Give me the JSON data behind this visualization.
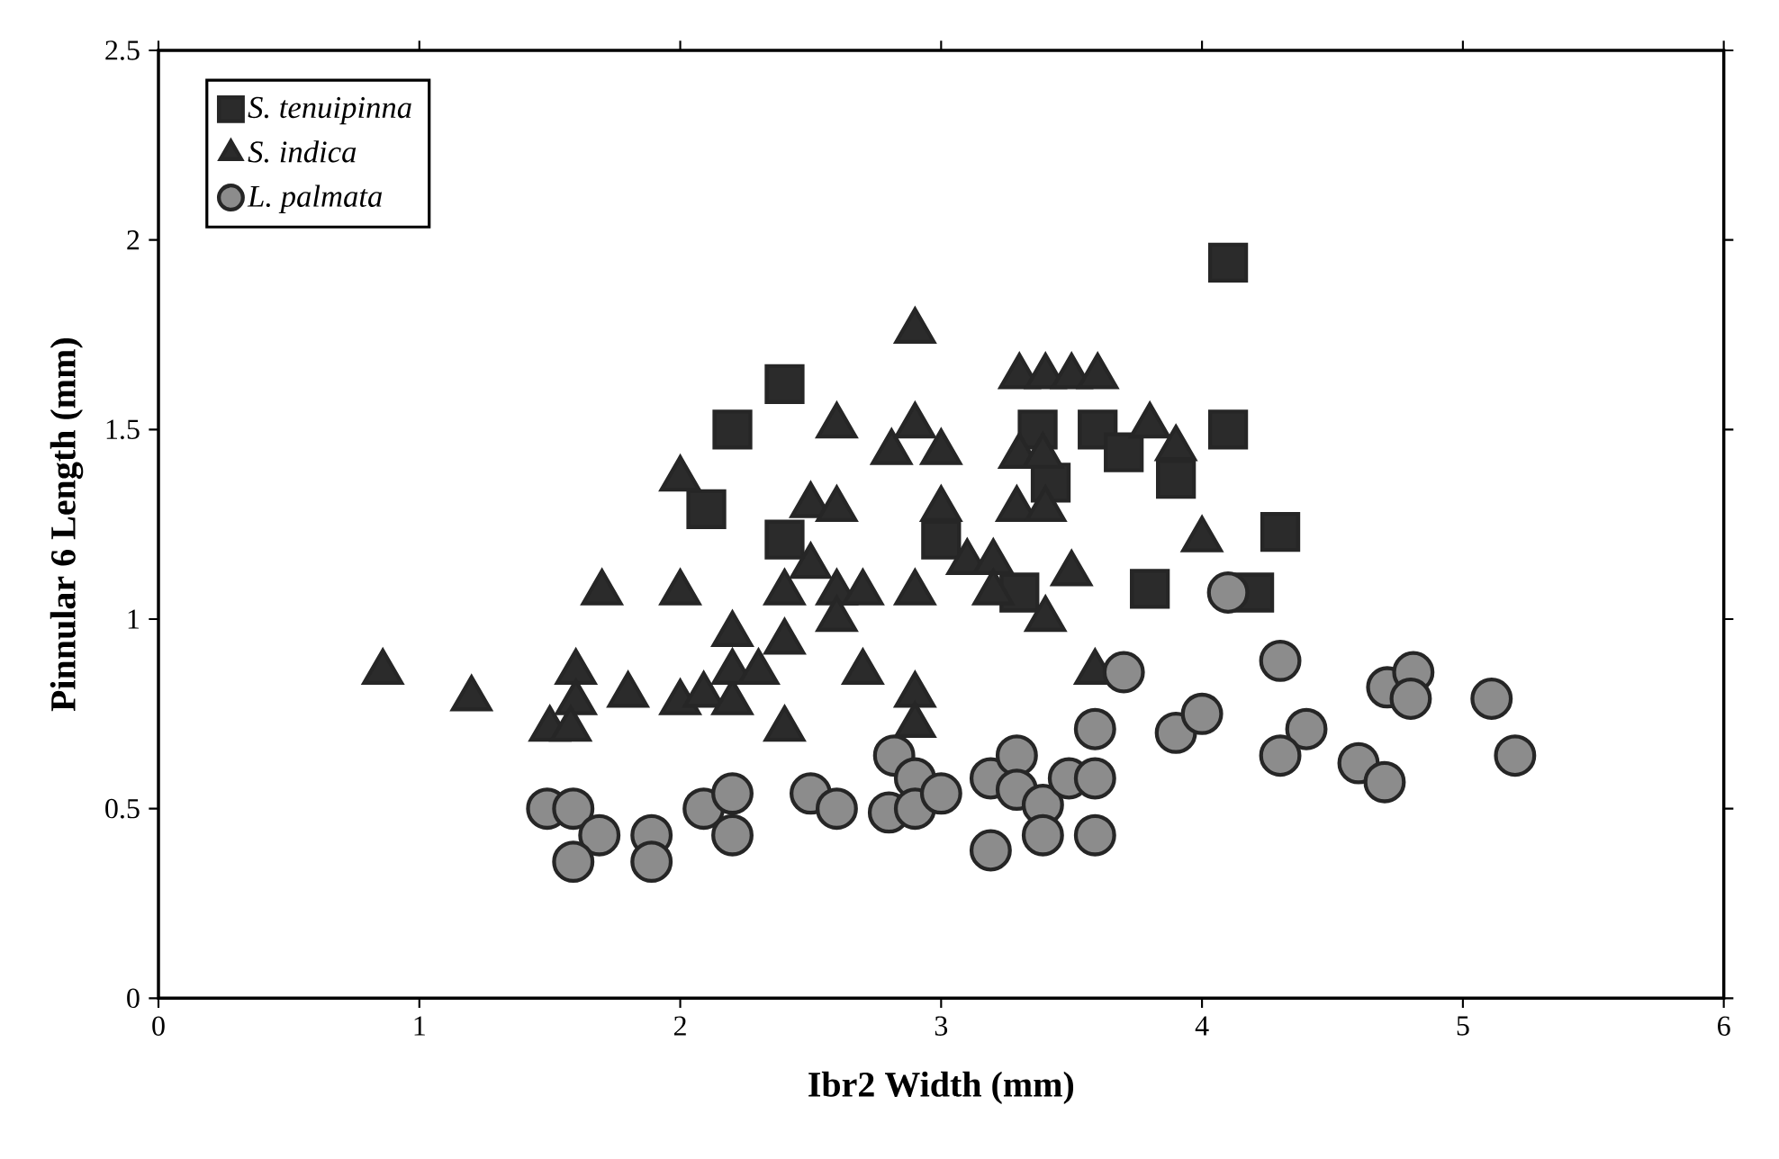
{
  "chart_data": {
    "type": "scatter",
    "xlabel": "Ibr2 Width (mm)",
    "ylabel": "Pinnular 6 Length (mm)",
    "xlim": [
      0,
      6
    ],
    "xticks": [
      0,
      1,
      2,
      3,
      4,
      5,
      6
    ],
    "ylim": [
      0,
      2.5
    ],
    "yticks": [
      0,
      0.5,
      1,
      1.5,
      2,
      2.5
    ],
    "grid": false,
    "legend": "top left",
    "series": [
      {
        "name": "S. tenuipinna",
        "color": "#2b2b2b",
        "marker": "square",
        "x": [
          2.1,
          2.2,
          2.4,
          2.4,
          3.0,
          3.3,
          3.37,
          3.42,
          3.6,
          3.7,
          3.8,
          3.9,
          4.1,
          4.1,
          4.2,
          4.3
        ],
        "values": [
          1.29,
          1.5,
          1.62,
          1.21,
          1.21,
          1.07,
          1.5,
          1.36,
          1.5,
          1.44,
          1.08,
          1.37,
          1.94,
          1.5,
          1.07,
          1.23
        ]
      },
      {
        "name": "S. indica",
        "color": "#2b2b2b",
        "marker": "triangle",
        "x": [
          0.86,
          1.2,
          1.7,
          2.0,
          2.0,
          1.6,
          1.6,
          1.5,
          1.58,
          1.8,
          2.0,
          2.09,
          2.2,
          2.2,
          2.2,
          2.3,
          2.4,
          2.4,
          2.4,
          2.5,
          2.5,
          2.9,
          2.6,
          2.81,
          2.9,
          3.0,
          3.3,
          3.4,
          3.5,
          3.6,
          3.3,
          3.39,
          3.9,
          3.8,
          2.6,
          3.0,
          3.29,
          3.4,
          4.0,
          3.1,
          3.2,
          2.6,
          2.7,
          2.9,
          3.2,
          3.5,
          3.4,
          2.6,
          2.7,
          2.9,
          2.9,
          3.59
        ],
        "values": [
          0.86,
          0.79,
          1.07,
          1.07,
          1.37,
          0.86,
          0.78,
          0.71,
          0.71,
          0.8,
          0.78,
          0.8,
          0.78,
          0.96,
          0.86,
          0.86,
          0.94,
          1.07,
          0.71,
          1.14,
          1.3,
          1.76,
          1.51,
          1.44,
          1.51,
          1.44,
          1.64,
          1.64,
          1.64,
          1.64,
          1.43,
          1.43,
          1.45,
          1.51,
          1.29,
          1.29,
          1.29,
          1.29,
          1.21,
          1.15,
          1.15,
          1.07,
          1.07,
          1.07,
          1.07,
          1.12,
          1.0,
          1.0,
          0.86,
          0.8,
          0.72,
          0.86
        ]
      },
      {
        "name": "L. palmata",
        "color": "#8c8c8c",
        "marker": "circle",
        "x": [
          1.49,
          1.59,
          1.69,
          1.59,
          1.89,
          1.89,
          2.09,
          2.2,
          2.2,
          2.5,
          2.6,
          2.82,
          2.8,
          2.9,
          2.9,
          3.0,
          3.19,
          3.29,
          3.29,
          3.39,
          3.49,
          3.59,
          3.39,
          3.59,
          3.19,
          3.59,
          3.7,
          3.9,
          4.0,
          4.1,
          4.3,
          4.4,
          4.3,
          4.71,
          4.81,
          4.8,
          4.6,
          4.7,
          5.11,
          5.2
        ],
        "values": [
          0.5,
          0.5,
          0.43,
          0.36,
          0.43,
          0.36,
          0.5,
          0.54,
          0.43,
          0.54,
          0.5,
          0.64,
          0.49,
          0.58,
          0.5,
          0.54,
          0.58,
          0.64,
          0.55,
          0.51,
          0.58,
          0.58,
          0.43,
          0.43,
          0.39,
          0.71,
          0.86,
          0.7,
          0.75,
          1.07,
          0.89,
          0.71,
          0.64,
          0.82,
          0.86,
          0.79,
          0.62,
          0.57,
          0.79,
          0.64
        ]
      }
    ]
  }
}
